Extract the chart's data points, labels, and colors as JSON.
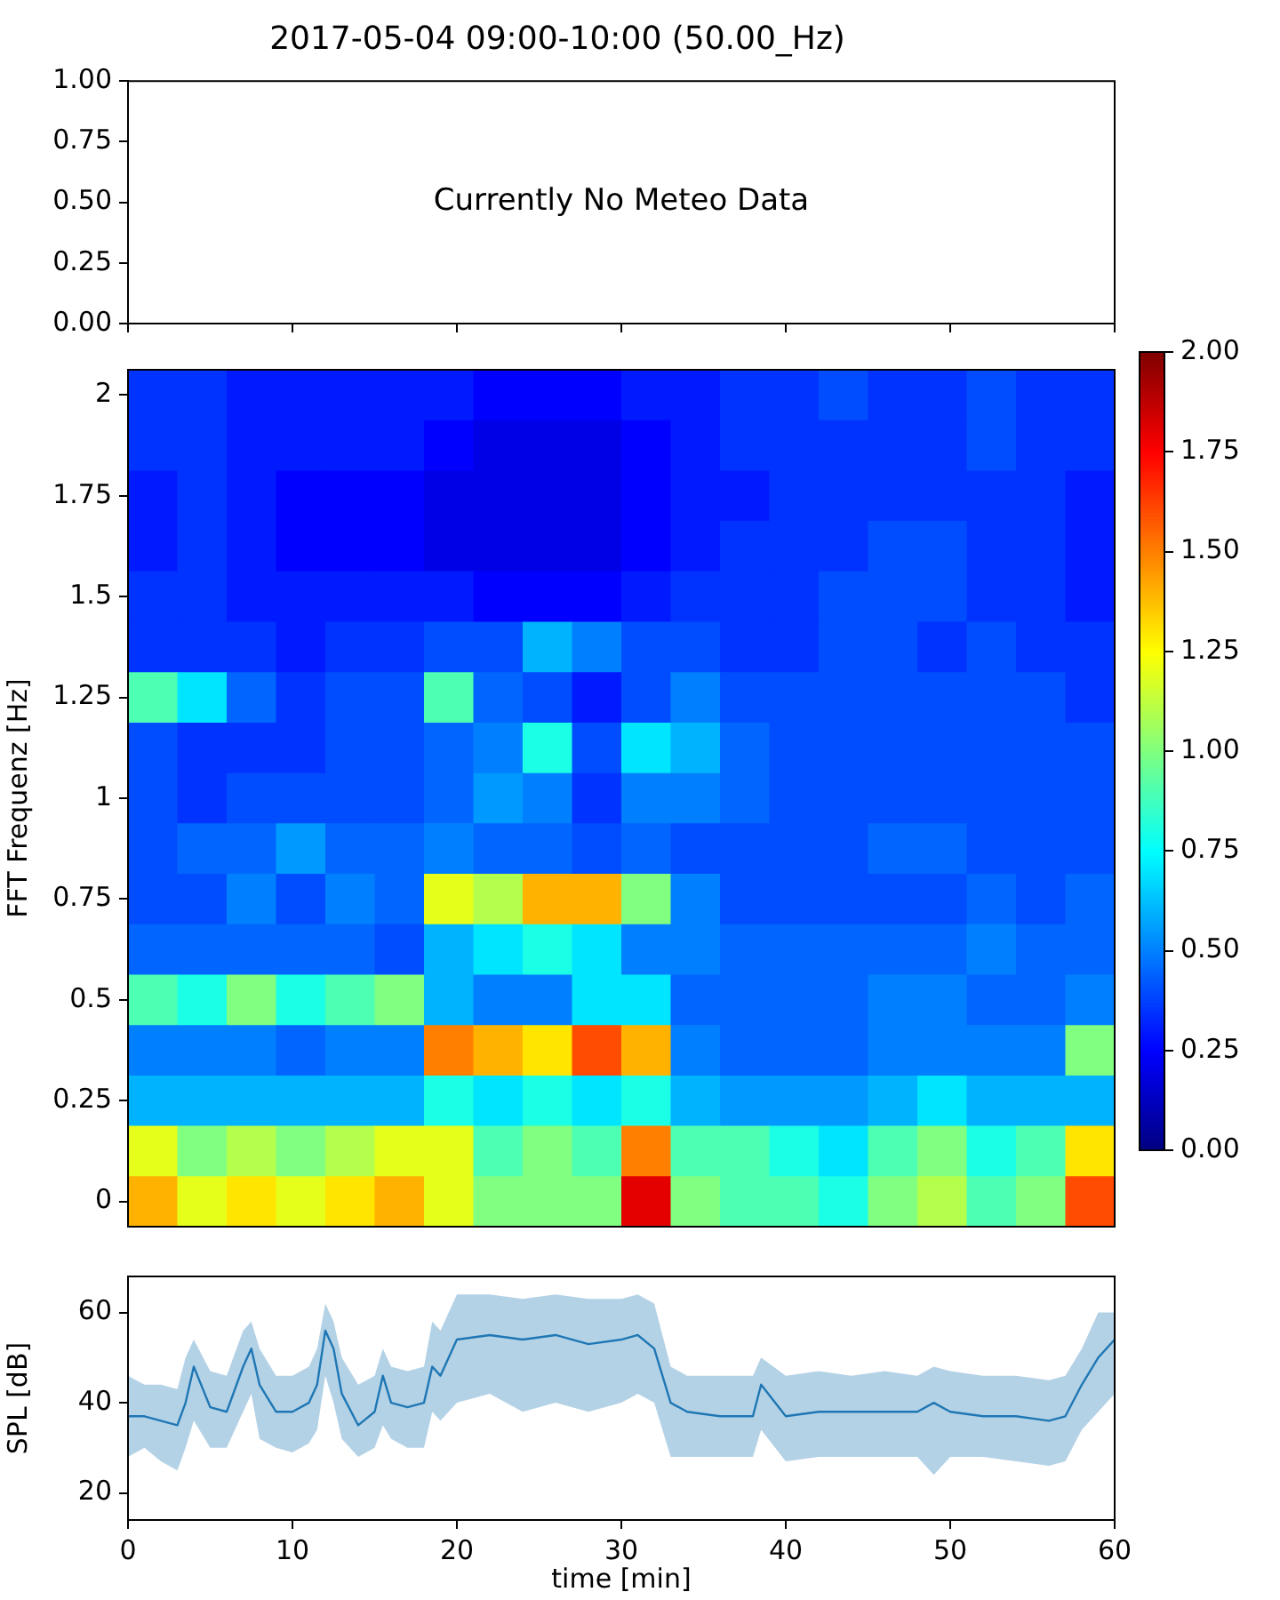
{
  "chart_data": [
    {
      "type": "line",
      "title": "2017-05-04 09:00-10:00 (50.00_Hz)",
      "xlim": [
        0,
        60
      ],
      "xticks": [
        {
          "value": 0,
          "label": null
        },
        {
          "value": 10,
          "label": null
        },
        {
          "value": 20,
          "label": null
        },
        {
          "value": 30,
          "label": null
        },
        {
          "value": 40,
          "label": null
        },
        {
          "value": 50,
          "label": null
        },
        {
          "value": 60,
          "label": null
        }
      ],
      "ylim": [
        0,
        1
      ],
      "yticks": [
        {
          "value": 0,
          "label": "0.00"
        },
        {
          "value": 0.25,
          "label": "0.25"
        },
        {
          "value": 0.5,
          "label": "0.50"
        },
        {
          "value": 0.75,
          "label": "0.75"
        },
        {
          "value": 1,
          "label": "1.00"
        }
      ],
      "tick_labels": "y",
      "annotations": [
        "Currently No Meteo Data"
      ]
    },
    {
      "type": "heatmap",
      "ylabel": "FFT Frequenz [Hz]",
      "categories": [
        null,
        null,
        null,
        null,
        null,
        null,
        null,
        null,
        null,
        null,
        null,
        null,
        null,
        null,
        null,
        null,
        null,
        null,
        null,
        null
      ],
      "y_categories": [
        "2",
        null,
        "1.75",
        null,
        "1.5",
        null,
        "1.25",
        null,
        "1",
        null,
        "0.75",
        null,
        "0.5",
        null,
        "0.25",
        null,
        "0"
      ],
      "tick_labels": "y",
      "clim": [
        0,
        2
      ],
      "cticks": [
        {
          "value": 0,
          "label": "0.00"
        },
        {
          "value": 0.25,
          "label": "0.25"
        },
        {
          "value": 0.5,
          "label": "0.50"
        },
        {
          "value": 0.75,
          "label": "0.75"
        },
        {
          "value": 1,
          "label": "1.00"
        },
        {
          "value": 1.25,
          "label": "1.25"
        },
        {
          "value": 1.5,
          "label": "1.50"
        },
        {
          "value": 1.75,
          "label": "1.75"
        },
        {
          "value": 2,
          "label": "2.00"
        }
      ],
      "cells": [
        [
          0.35,
          0.35,
          0.3,
          0.3,
          0.3,
          0.3,
          0.3,
          0.25,
          0.25,
          0.25,
          0.3,
          0.3,
          0.35,
          0.35,
          0.4,
          0.35,
          0.35,
          0.4,
          0.35,
          0.35
        ],
        [
          0.35,
          0.35,
          0.3,
          0.3,
          0.3,
          0.3,
          0.25,
          0.2,
          0.2,
          0.2,
          0.25,
          0.3,
          0.35,
          0.35,
          0.35,
          0.35,
          0.35,
          0.4,
          0.35,
          0.35
        ],
        [
          0.3,
          0.35,
          0.3,
          0.25,
          0.25,
          0.25,
          0.2,
          0.2,
          0.2,
          0.2,
          0.25,
          0.3,
          0.3,
          0.35,
          0.35,
          0.35,
          0.35,
          0.35,
          0.35,
          0.3
        ],
        [
          0.3,
          0.35,
          0.3,
          0.25,
          0.25,
          0.25,
          0.2,
          0.2,
          0.2,
          0.2,
          0.25,
          0.3,
          0.35,
          0.35,
          0.35,
          0.4,
          0.4,
          0.35,
          0.35,
          0.3
        ],
        [
          0.35,
          0.35,
          0.3,
          0.3,
          0.3,
          0.3,
          0.3,
          0.25,
          0.25,
          0.25,
          0.3,
          0.35,
          0.35,
          0.35,
          0.4,
          0.4,
          0.4,
          0.35,
          0.35,
          0.3
        ],
        [
          0.35,
          0.35,
          0.35,
          0.3,
          0.35,
          0.35,
          0.4,
          0.4,
          0.6,
          0.5,
          0.4,
          0.4,
          0.35,
          0.35,
          0.4,
          0.4,
          0.35,
          0.4,
          0.35,
          0.35
        ],
        [
          0.9,
          0.7,
          0.45,
          0.35,
          0.4,
          0.4,
          0.9,
          0.45,
          0.4,
          0.3,
          0.4,
          0.5,
          0.4,
          0.4,
          0.4,
          0.4,
          0.4,
          0.4,
          0.4,
          0.35
        ],
        [
          0.4,
          0.35,
          0.35,
          0.35,
          0.4,
          0.4,
          0.45,
          0.5,
          0.8,
          0.4,
          0.7,
          0.6,
          0.45,
          0.4,
          0.4,
          0.4,
          0.4,
          0.4,
          0.4,
          0.4
        ],
        [
          0.4,
          0.35,
          0.4,
          0.4,
          0.4,
          0.4,
          0.45,
          0.55,
          0.5,
          0.35,
          0.5,
          0.5,
          0.45,
          0.4,
          0.4,
          0.4,
          0.4,
          0.4,
          0.4,
          0.4
        ],
        [
          0.4,
          0.45,
          0.45,
          0.55,
          0.45,
          0.45,
          0.5,
          0.45,
          0.45,
          0.4,
          0.45,
          0.4,
          0.4,
          0.4,
          0.4,
          0.45,
          0.45,
          0.4,
          0.4,
          0.4
        ],
        [
          0.4,
          0.4,
          0.5,
          0.4,
          0.5,
          0.45,
          1.2,
          1.1,
          1.4,
          1.4,
          1.0,
          0.5,
          0.4,
          0.4,
          0.4,
          0.4,
          0.4,
          0.45,
          0.4,
          0.45
        ],
        [
          0.45,
          0.45,
          0.45,
          0.45,
          0.45,
          0.4,
          0.6,
          0.7,
          0.8,
          0.7,
          0.5,
          0.5,
          0.45,
          0.45,
          0.45,
          0.45,
          0.45,
          0.5,
          0.45,
          0.45
        ],
        [
          0.9,
          0.8,
          1.0,
          0.8,
          0.9,
          1.0,
          0.6,
          0.5,
          0.5,
          0.7,
          0.7,
          0.45,
          0.45,
          0.45,
          0.45,
          0.5,
          0.5,
          0.45,
          0.45,
          0.5
        ],
        [
          0.5,
          0.5,
          0.5,
          0.45,
          0.5,
          0.5,
          1.5,
          1.4,
          1.3,
          1.6,
          1.4,
          0.5,
          0.45,
          0.45,
          0.45,
          0.5,
          0.5,
          0.5,
          0.5,
          1.0
        ],
        [
          0.6,
          0.6,
          0.6,
          0.6,
          0.6,
          0.6,
          0.8,
          0.7,
          0.8,
          0.7,
          0.8,
          0.6,
          0.55,
          0.55,
          0.55,
          0.6,
          0.7,
          0.6,
          0.6,
          0.6
        ],
        [
          1.2,
          1.0,
          1.1,
          1.0,
          1.1,
          1.2,
          1.2,
          0.9,
          1.0,
          0.9,
          1.5,
          0.9,
          0.9,
          0.8,
          0.7,
          0.9,
          1.0,
          0.8,
          0.9,
          1.3
        ],
        [
          1.4,
          1.2,
          1.3,
          1.2,
          1.3,
          1.4,
          1.2,
          1.0,
          1.0,
          1.0,
          1.8,
          1.0,
          0.9,
          0.9,
          0.8,
          1.0,
          1.1,
          0.9,
          1.0,
          1.6
        ]
      ]
    },
    {
      "type": "line",
      "xlabel": "time [min]",
      "ylabel": "SPL [dB]",
      "xlim": [
        0,
        60
      ],
      "xticks": [
        0,
        10,
        20,
        30,
        40,
        50,
        60
      ],
      "ylim": [
        14,
        68
      ],
      "yticks": [
        20,
        40,
        60
      ],
      "x": [
        0,
        1,
        2,
        3,
        3.5,
        4,
        5,
        6,
        7,
        7.5,
        8,
        9,
        10,
        11,
        11.5,
        12,
        12.5,
        13,
        14,
        15,
        15.5,
        16,
        17,
        18,
        18.5,
        19,
        20,
        22,
        24,
        26,
        28,
        30,
        31,
        32,
        33,
        34,
        36,
        38,
        38.5,
        40,
        42,
        44,
        46,
        48,
        49,
        50,
        52,
        54,
        56,
        57,
        58,
        59,
        60
      ],
      "series": [
        {
          "color": "#1f77b4",
          "values": [
            37,
            37,
            36,
            35,
            40,
            48,
            39,
            38,
            48,
            52,
            44,
            38,
            38,
            40,
            44,
            56,
            52,
            42,
            35,
            38,
            46,
            40,
            39,
            40,
            48,
            46,
            54,
            55,
            54,
            55,
            53,
            54,
            55,
            52,
            40,
            38,
            37,
            37,
            44,
            37,
            38,
            38,
            38,
            38,
            40,
            38,
            37,
            37,
            36,
            37,
            44,
            50,
            54
          ],
          "lower": [
            28,
            30,
            27,
            25,
            30,
            36,
            30,
            30,
            38,
            42,
            32,
            30,
            29,
            31,
            34,
            46,
            40,
            32,
            28,
            30,
            35,
            32,
            30,
            30,
            38,
            36,
            40,
            42,
            38,
            40,
            38,
            40,
            42,
            40,
            28,
            28,
            28,
            28,
            34,
            27,
            28,
            28,
            28,
            28,
            24,
            28,
            28,
            27,
            26,
            27,
            34,
            38,
            42
          ],
          "upper": [
            46,
            44,
            44,
            43,
            50,
            54,
            47,
            46,
            56,
            58,
            52,
            46,
            46,
            48,
            52,
            62,
            58,
            50,
            44,
            46,
            52,
            48,
            47,
            48,
            58,
            56,
            64,
            64,
            63,
            64,
            63,
            63,
            64,
            62,
            48,
            46,
            46,
            46,
            50,
            46,
            47,
            46,
            47,
            46,
            48,
            47,
            46,
            46,
            45,
            46,
            52,
            60,
            60
          ]
        }
      ]
    }
  ]
}
